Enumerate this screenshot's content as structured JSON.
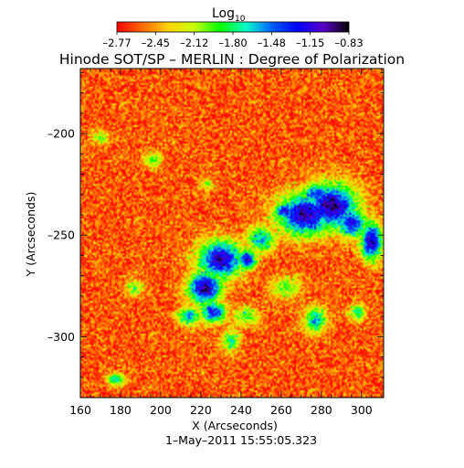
{
  "chart_data": {
    "type": "heatmap",
    "title": "Hinode SOT/SP – MERLIN : Degree of Polarization",
    "xlabel": "X (Arcseconds)",
    "ylabel": "Y (Arcseconds)",
    "footer": "1–May–2011 15:55:05.323",
    "colorbar": {
      "label_base": "Log",
      "label_sub": "10",
      "min": -2.77,
      "max": -0.83,
      "tick_labels": [
        "–2.77",
        "–2.45",
        "–2.12",
        "–1.80",
        "–1.48",
        "–1.15",
        "–0.83"
      ],
      "colors": [
        "#ff0000",
        "#ff6a00",
        "#ffd400",
        "#c8ff00",
        "#00ff00",
        "#00ffc8",
        "#0060ff",
        "#0000ff",
        "#5a00c8",
        "#000000"
      ]
    },
    "xlim": [
      160,
      311
    ],
    "ylim": [
      -330,
      -168
    ],
    "xticks": [
      {
        "value": 160,
        "label": "160"
      },
      {
        "value": 180,
        "label": "180"
      },
      {
        "value": 200,
        "label": "200"
      },
      {
        "value": 220,
        "label": "220"
      },
      {
        "value": 240,
        "label": "240"
      },
      {
        "value": 260,
        "label": "260"
      },
      {
        "value": 280,
        "label": "280"
      },
      {
        "value": 300,
        "label": "300"
      }
    ],
    "yticks": [
      {
        "value": -200,
        "label": "–200"
      },
      {
        "value": -250,
        "label": "–250"
      },
      {
        "value": -300,
        "label": "–300"
      }
    ],
    "background_level": -2.6,
    "regions": [
      {
        "x": 230,
        "y": -262,
        "rx": 12,
        "ry": 10,
        "level": -1.05
      },
      {
        "x": 222,
        "y": -276,
        "rx": 9,
        "ry": 9,
        "level": -1.0
      },
      {
        "x": 226,
        "y": -288,
        "rx": 7,
        "ry": 6,
        "level": -1.3
      },
      {
        "x": 214,
        "y": -290,
        "rx": 6,
        "ry": 5,
        "level": -1.55
      },
      {
        "x": 250,
        "y": -252,
        "rx": 8,
        "ry": 7,
        "level": -1.6
      },
      {
        "x": 243,
        "y": -262,
        "rx": 5,
        "ry": 5,
        "level": -1.1
      },
      {
        "x": 272,
        "y": -240,
        "rx": 15,
        "ry": 11,
        "level": -1.0
      },
      {
        "x": 285,
        "y": -236,
        "rx": 14,
        "ry": 12,
        "level": -0.98
      },
      {
        "x": 295,
        "y": -244,
        "rx": 8,
        "ry": 8,
        "level": -1.2
      },
      {
        "x": 305,
        "y": -253,
        "rx": 6,
        "ry": 10,
        "level": -1.05
      },
      {
        "x": 278,
        "y": -230,
        "rx": 9,
        "ry": 6,
        "level": -1.35
      },
      {
        "x": 262,
        "y": -238,
        "rx": 6,
        "ry": 4,
        "level": -1.2
      },
      {
        "x": 277,
        "y": -292,
        "rx": 6,
        "ry": 7,
        "level": -1.6
      },
      {
        "x": 298,
        "y": -288,
        "rx": 4,
        "ry": 4,
        "level": -1.7
      },
      {
        "x": 242,
        "y": -290,
        "rx": 7,
        "ry": 5,
        "level": -1.9
      },
      {
        "x": 235,
        "y": -302,
        "rx": 5,
        "ry": 6,
        "level": -1.8
      },
      {
        "x": 262,
        "y": -276,
        "rx": 8,
        "ry": 6,
        "level": -1.95
      },
      {
        "x": 196,
        "y": -213,
        "rx": 5,
        "ry": 4,
        "level": -1.9
      },
      {
        "x": 187,
        "y": -276,
        "rx": 5,
        "ry": 4,
        "level": -1.95
      },
      {
        "x": 178,
        "y": -321,
        "rx": 5,
        "ry": 3,
        "level": -1.7
      },
      {
        "x": 223,
        "y": -225,
        "rx": 4,
        "ry": 3,
        "level": -2.05
      },
      {
        "x": 170,
        "y": -202,
        "rx": 5,
        "ry": 4,
        "level": -2.1
      }
    ]
  }
}
